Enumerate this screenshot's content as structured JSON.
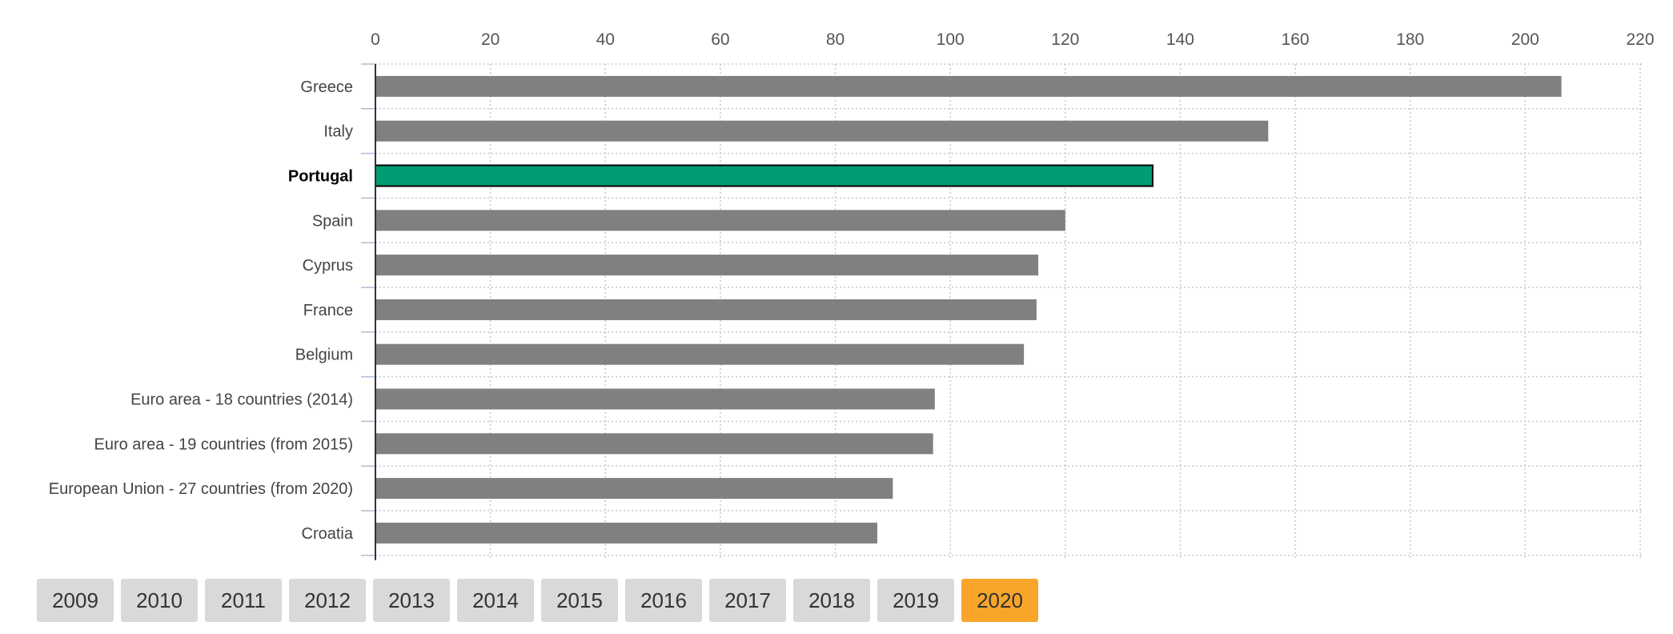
{
  "chart_data": {
    "type": "bar",
    "orientation": "horizontal",
    "categories": [
      "Greece",
      "Italy",
      "Portugal",
      "Spain",
      "Cyprus",
      "France",
      "Belgium",
      "Euro area - 18 countries (2014)",
      "Euro area - 19 countries (from 2015)",
      "European Union - 27 countries (from 2020)",
      "Croatia"
    ],
    "values": [
      206.3,
      155.3,
      135.2,
      120.0,
      115.3,
      115.0,
      112.8,
      97.3,
      97.0,
      90.0,
      87.3
    ],
    "highlight": "Portugal",
    "xlim": [
      0,
      220
    ],
    "ticks": [
      0,
      20,
      40,
      60,
      80,
      100,
      120,
      140,
      160,
      180,
      200,
      220
    ],
    "axis_position": "top",
    "grid": true,
    "colors": {
      "bar": "#808080",
      "highlight": "#009c74",
      "highlight_border": "#000000",
      "grid": "#c8c8c8"
    }
  },
  "years": {
    "items": [
      "2009",
      "2010",
      "2011",
      "2012",
      "2013",
      "2014",
      "2015",
      "2016",
      "2017",
      "2018",
      "2019",
      "2020"
    ],
    "selected": "2020",
    "colors": {
      "default": "#d9d9d9",
      "selected": "#f8a52a"
    }
  }
}
